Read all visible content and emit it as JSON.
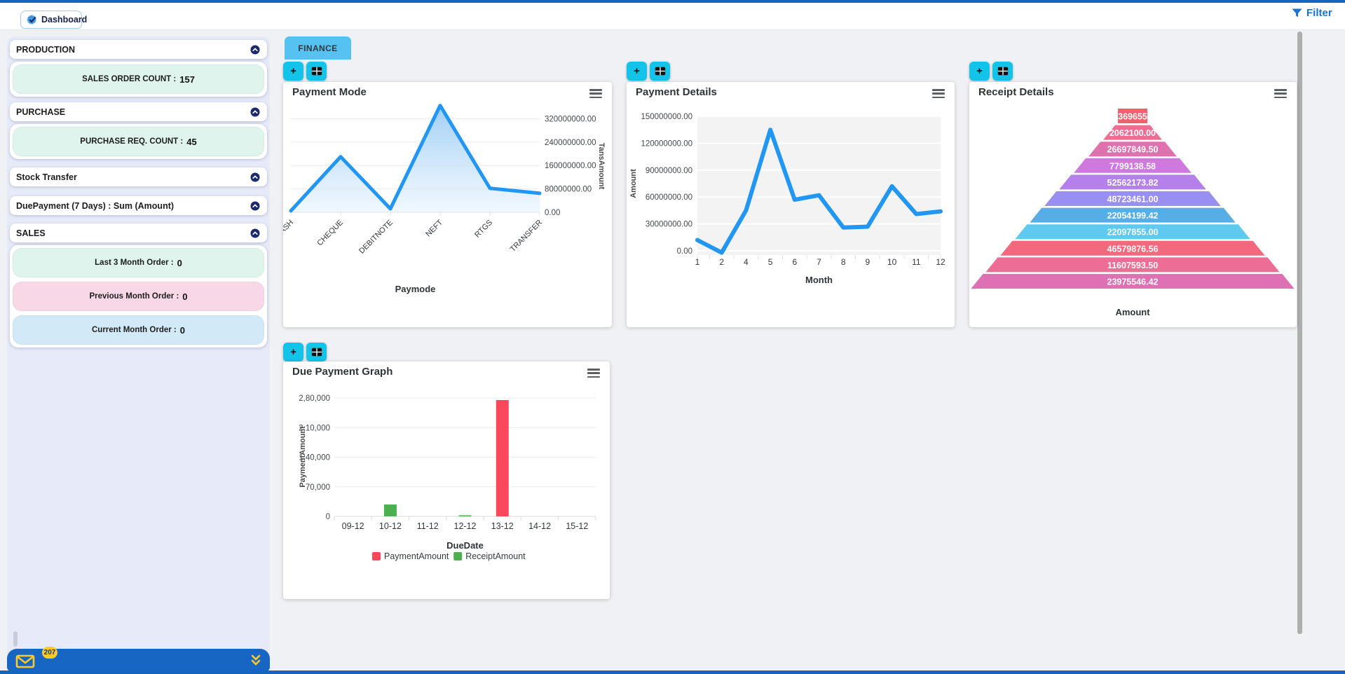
{
  "topbar": {
    "brand_tab": "Dashboard",
    "filter_label": "Filter",
    "accent": "#1565c0",
    "filter_color": "#1a73d2"
  },
  "sidebar": {
    "bg": "#e7ebf9",
    "sections": [
      {
        "title": "PRODUCTION"
      },
      {
        "title": "PURCHASE"
      },
      {
        "title": "Stock Transfer"
      },
      {
        "title": "DuePayment (7 Days) : Sum (Amount)"
      },
      {
        "title": "SALES"
      }
    ],
    "pills": {
      "production": {
        "label": "SALES ORDER COUNT :",
        "value": "157",
        "bg": "#def4ec"
      },
      "purchase": {
        "label": "PURCHASE REQ. COUNT :",
        "value": "45",
        "bg": "#def4ec"
      },
      "sales": [
        {
          "label": "Last 3 Month Order :",
          "value": "0",
          "bg": "#def4ec"
        },
        {
          "label": "Previous Month Order :",
          "value": "0",
          "bg": "#f8d8e6"
        },
        {
          "label": "Current Month Order :",
          "value": "0",
          "bg": "#d2eaf8"
        }
      ]
    },
    "notification": {
      "badge": "207"
    }
  },
  "main": {
    "tab": "FINANCE",
    "add_button": "+"
  },
  "chart_data": [
    {
      "id": "payment_mode",
      "type": "area",
      "title": "Payment Mode",
      "categories": [
        "CASH",
        "CHEQUE",
        "DEBITNOTE",
        "NEFT",
        "RTGS",
        "TRANSFER"
      ],
      "values": [
        5000000,
        190000000,
        12000000,
        365000000,
        82000000,
        65000000
      ],
      "ylim": [
        0,
        400000000
      ],
      "y_ticks": [
        "0.00",
        "80000000.00",
        "160000000.00",
        "240000000.00",
        "320000000.00"
      ],
      "xlabel": "Paymode",
      "ylabel": "TansAmount",
      "y_axis_side": "right",
      "legend": "off",
      "grid": "horizontal",
      "line_color": "#2196f3",
      "fill_from": "#8ec6f2",
      "fill_to": "#e3f1fd"
    },
    {
      "id": "payment_details",
      "type": "line",
      "title": "Payment Details",
      "categories": [
        "1",
        "2",
        "4",
        "5",
        "6",
        "7",
        "8",
        "9",
        "10",
        "11",
        "12"
      ],
      "values": [
        12000000,
        -2000000,
        45000000,
        135000000,
        57000000,
        62000000,
        26000000,
        27000000,
        72000000,
        41000000,
        44000000
      ],
      "ylim": [
        0,
        150000000
      ],
      "y_ticks": [
        "0.00",
        "30000000.00",
        "60000000.00",
        "90000000.00",
        "120000000.00",
        "150000000.00"
      ],
      "xlabel": "Month",
      "ylabel": "Amount",
      "y_axis_side": "left",
      "legend": "off",
      "grid": "horizontal-white-on-gray",
      "plot_bg": "#f3f3f4",
      "line_color": "#2196f3"
    },
    {
      "id": "receipt_details",
      "type": "pyramid",
      "title": "Receipt Details",
      "xlabel": "Amount",
      "labels": [
        "369655",
        "2062100.00",
        "26697849.50",
        "7799138.58",
        "52562173.82",
        "48723461.00",
        "22054199.42",
        "22097855.00",
        "46579876.56",
        "11607593.50",
        "23975546.42"
      ],
      "colors": [
        "#f2606e",
        "#ee6d92",
        "#de71ae",
        "#cf79e0",
        "#b680ea",
        "#998ef2",
        "#57ade5",
        "#5fc9f0",
        "#f2687c",
        "#ee6d96",
        "#de70b4"
      ]
    },
    {
      "id": "due_payment",
      "type": "bar",
      "title": "Due Payment Graph",
      "categories": [
        "09-12",
        "10-12",
        "11-12",
        "12-12",
        "13-12",
        "14-12",
        "15-12"
      ],
      "series": [
        {
          "name": "PaymentAmount",
          "color": "#f9475b",
          "values": [
            0,
            0,
            0,
            0,
            275000,
            0,
            0
          ]
        },
        {
          "name": "ReceiptAmount",
          "color": "#4caf50",
          "values": [
            0,
            28000,
            0,
            2500,
            0,
            0,
            0
          ]
        }
      ],
      "ylim": [
        0,
        280000
      ],
      "y_ticks": [
        "0",
        "70,000",
        "1,40,000",
        "2,10,000",
        "2,80,000"
      ],
      "xlabel": "DueDate",
      "ylabel": "PaymentAmount",
      "legend": "bottom",
      "grid": "horizontal"
    }
  ]
}
